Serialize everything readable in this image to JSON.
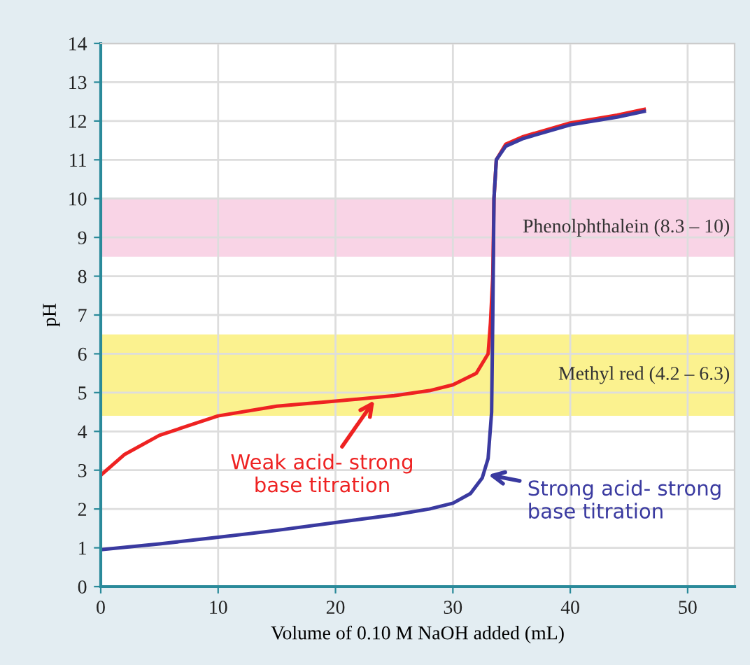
{
  "chart_data": {
    "type": "line",
    "xlabel": "Volume of 0.10 M NaOH added (mL)",
    "ylabel": "pH",
    "xlim": [
      0,
      54
    ],
    "ylim": [
      0,
      14
    ],
    "xticks": [
      0,
      10,
      20,
      30,
      40,
      50
    ],
    "yticks": [
      0,
      1,
      2,
      3,
      4,
      5,
      6,
      7,
      8,
      9,
      10,
      11,
      12,
      13,
      14
    ],
    "grid": true,
    "bands": [
      {
        "axis": "y",
        "from": 8.5,
        "to": 10,
        "label": "Phenolphthalein (8.3 – 10)",
        "color": "#f9d4e6"
      },
      {
        "axis": "y",
        "from": 4.4,
        "to": 6.5,
        "label": "Methyl red (4.2 – 6.3)",
        "color": "#fbf28f"
      }
    ],
    "series": [
      {
        "color": "#ee2222",
        "x": [
          0,
          2,
          5,
          8,
          10,
          15,
          20,
          25,
          28,
          30,
          32,
          33,
          33.2,
          33.4,
          33.5,
          33.7,
          34.5,
          36,
          40,
          44,
          46.3
        ],
        "values": [
          2.87,
          3.4,
          3.9,
          4.2,
          4.4,
          4.65,
          4.78,
          4.92,
          5.05,
          5.2,
          5.5,
          6.0,
          6.8,
          8,
          10,
          11,
          11.4,
          11.6,
          11.95,
          12.15,
          12.3
        ]
      },
      {
        "color": "#3a3aa0",
        "x": [
          0,
          5,
          10,
          15,
          20,
          25,
          28,
          30,
          31.5,
          32.5,
          33,
          33.3,
          33.4,
          33.5,
          33.7,
          34.5,
          36,
          40,
          44,
          46.3
        ],
        "values": [
          0.95,
          1.1,
          1.27,
          1.45,
          1.65,
          1.85,
          2.0,
          2.15,
          2.4,
          2.8,
          3.3,
          4.5,
          7,
          10,
          11,
          11.35,
          11.55,
          11.9,
          12.1,
          12.25
        ]
      }
    ],
    "annotations": [
      {
        "text": "Weak acid- strong\nbase titration",
        "x": 23.5,
        "y": 4.88
      },
      {
        "text": "Strong acid- strong\nbase titration",
        "x": 32.7,
        "y": 2.9
      }
    ]
  }
}
